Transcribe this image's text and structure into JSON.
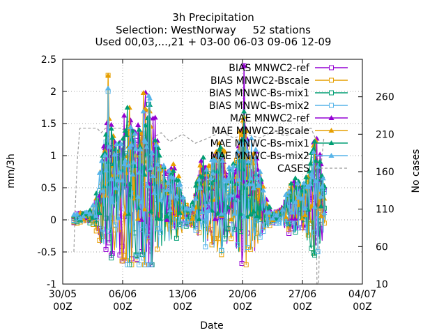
{
  "chart_data": {
    "type": "line",
    "title_lines": [
      "3h Precipitation",
      "Selection: WestNorway     52 stations",
      "Used 00,03,...,21 + 03-00 06-03 09-06 12-09"
    ],
    "xlabel": "Date",
    "ylabel": "mm/3h",
    "y2label": "No cases",
    "x_ticks": [
      {
        "top": "30/05",
        "bottom": "00Z",
        "day": 0
      },
      {
        "top": "06/06",
        "bottom": "00Z",
        "day": 7
      },
      {
        "top": "13/06",
        "bottom": "00Z",
        "day": 14
      },
      {
        "top": "20/06",
        "bottom": "00Z",
        "day": 21
      },
      {
        "top": "27/06",
        "bottom": "00Z",
        "day": 28
      },
      {
        "top": "04/07",
        "bottom": "00Z",
        "day": 35
      }
    ],
    "x_start_date": "30/05 00Z",
    "xlim_days": [
      0,
      35
    ],
    "ylim": [
      -1,
      2.5
    ],
    "y_ticks": [
      "-1",
      "-0.5",
      "0",
      "0.5",
      "1",
      "1.5",
      "2",
      "2.5"
    ],
    "y_tick_values": [
      -1,
      -0.5,
      0,
      0.5,
      1,
      1.5,
      2,
      2.5
    ],
    "y2lim": [
      10,
      310
    ],
    "y2_ticks": [
      "10",
      "60",
      "110",
      "160",
      "210",
      "260"
    ],
    "y2_tick_values": [
      10,
      60,
      110,
      160,
      210,
      260
    ],
    "grid": true,
    "legend_position": "top-right",
    "series": [
      {
        "name": "BIAS MNWC2-ref",
        "color": "#9400d3",
        "marker": "open-square",
        "scale": 1.0,
        "seed": 1,
        "peak_day": 21.2,
        "peak": 2.4
      },
      {
        "name": "BIAS MNWC2-Bscale",
        "color": "#e69f00",
        "marker": "open-square",
        "scale": 1.05,
        "seed": 2,
        "peak_day": 5.3,
        "peak": 2.25
      },
      {
        "name": "BIAS MNWC-Bs-mix1",
        "color": "#009e73",
        "marker": "open-square",
        "scale": 0.95,
        "seed": 3,
        "peak_day": 10.0,
        "peak": 1.8
      },
      {
        "name": "BIAS MNWC-Bs-mix2",
        "color": "#56b4e9",
        "marker": "open-square",
        "scale": 1.0,
        "seed": 4,
        "peak_day": 5.3,
        "peak": 2.0
      },
      {
        "name": "MAE MNWC2-ref",
        "color": "#9400d3",
        "marker": "filled-triangle",
        "scale": 1.0,
        "seed": 5,
        "peak_day": 21.2,
        "peak": 2.4
      },
      {
        "name": "MAE MNWC2-Bscale",
        "color": "#e69f00",
        "marker": "filled-triangle",
        "scale": 1.0,
        "seed": 6,
        "peak_day": 5.3,
        "peak": 2.25
      },
      {
        "name": "MAE MNWC-Bs-mix1",
        "color": "#009e73",
        "marker": "filled-triangle",
        "scale": 1.0,
        "seed": 7,
        "peak_day": 7.5,
        "peak": 1.75
      },
      {
        "name": "MAE MNWC-Bs-mix2",
        "color": "#56b4e9",
        "marker": "filled-triangle",
        "scale": 1.0,
        "seed": 8,
        "peak_day": 5.3,
        "peak": 2.05
      }
    ],
    "cases_series": {
      "name": "CASES",
      "color": "#999999",
      "style": "dashed",
      "points": [
        [
          1.3,
          53
        ],
        [
          1.45,
          110
        ],
        [
          1.7,
          175
        ],
        [
          2.0,
          218
        ],
        [
          4.0,
          218
        ],
        [
          4.5,
          212
        ],
        [
          5.0,
          218
        ],
        [
          7.0,
          218
        ],
        [
          8.0,
          205
        ],
        [
          9.0,
          212
        ],
        [
          10.0,
          205
        ],
        [
          10.2,
          50
        ],
        [
          10.5,
          205
        ],
        [
          11.5,
          212
        ],
        [
          12.5,
          200
        ],
        [
          14.0,
          210
        ],
        [
          15.5,
          198
        ],
        [
          17.0,
          205
        ],
        [
          18.5,
          213
        ],
        [
          20.0,
          205
        ],
        [
          21.5,
          210
        ],
        [
          23.0,
          205
        ],
        [
          24.5,
          213
        ],
        [
          26.0,
          208
        ],
        [
          27.5,
          213
        ],
        [
          29.0,
          218
        ],
        [
          29.5,
          205
        ],
        [
          29.7,
          10
        ],
        [
          29.9,
          10
        ],
        [
          30.1,
          160
        ],
        [
          30.5,
          205
        ]
      ]
    }
  }
}
